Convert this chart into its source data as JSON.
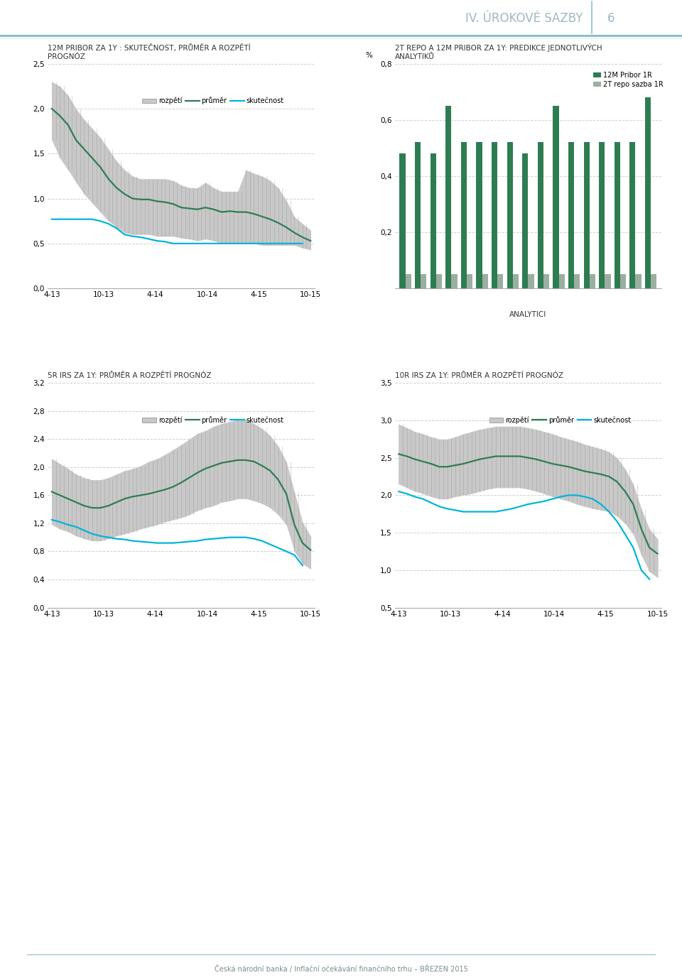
{
  "page_title": "IV. ÚROKOVÉ SAZBY",
  "page_number": "6",
  "footer": "Česká národní banka / Inflační očekávání finančního trhu – BŘEZEN 2015",
  "chart1_title": "12M PRIBOR ZA 1Y : SKUTEČNOST, PRŮMĚR A ROZPĚTÍ\nPROGNÓZ",
  "chart1_ylim": [
    0.0,
    2.5
  ],
  "chart1_yticks": [
    0.0,
    0.5,
    1.0,
    1.5,
    2.0,
    2.5
  ],
  "chart1_ytick_labels": [
    "0,0",
    "0,5",
    "1,0",
    "1,5",
    "2,0",
    "2,5"
  ],
  "chart1_xtick_labels": [
    "4-13",
    "10-13",
    "4-14",
    "10-14",
    "4-15",
    "10-15"
  ],
  "chart1_legend": [
    "rozpětí",
    "průměr",
    "skutečnost"
  ],
  "chart2_title": "2T REPO A 12M PRIBOR ZA 1Y: PREDIKCE JEDNOTLIVÝCH\nANALYTIKŮ",
  "chart2_ylabel": "%",
  "chart2_ylim": [
    0.0,
    0.8
  ],
  "chart2_yticks": [
    0.0,
    0.2,
    0.4,
    0.6,
    0.8
  ],
  "chart2_ytick_labels": [
    "",
    "0,2",
    "0,4",
    "0,6",
    "0,8"
  ],
  "chart2_xlabel": "ANALYTICI",
  "chart2_legend": [
    "12M Pribor 1R",
    "2T repo sazba 1R"
  ],
  "chart2_bar_color1": "#2e7d52",
  "chart2_bar_color2": "#9aafa0",
  "chart3_title": "5R IRS ZA 1Y: PRŮMĚR A ROZPĚTÍ PROGNÓZ",
  "chart3_ylim": [
    0.0,
    3.2
  ],
  "chart3_yticks": [
    0.0,
    0.4,
    0.8,
    1.2,
    1.6,
    2.0,
    2.4,
    2.8,
    3.2
  ],
  "chart3_ytick_labels": [
    "0,0",
    "0,4",
    "0,8",
    "1,2",
    "1,6",
    "2,0",
    "2,4",
    "2,8",
    "3,2"
  ],
  "chart3_xtick_labels": [
    "4-13",
    "10-13",
    "4-14",
    "10-14",
    "4-15",
    "10-15"
  ],
  "chart3_legend": [
    "rozpětí",
    "průměr",
    "skutečnost"
  ],
  "chart4_title": "10R IRS ZA 1Y: PRŮMĚR A ROZPĚTÍ PROGNÓZ",
  "chart4_ylim": [
    0.5,
    3.5
  ],
  "chart4_yticks": [
    0.5,
    1.0,
    1.5,
    2.0,
    2.5,
    3.0,
    3.5
  ],
  "chart4_ytick_labels": [
    "0,5",
    "1,0",
    "1,5",
    "2,0",
    "2,5",
    "3,0",
    "3,5"
  ],
  "chart4_xtick_labels": [
    "4-13",
    "10-13",
    "4-14",
    "10-14",
    "4-15",
    "10-15"
  ],
  "chart4_legend": [
    "rozpětí",
    "průměr",
    "skutečnost"
  ],
  "color_band": "#c8c8c8",
  "color_mean": "#2e7d52",
  "color_actual": "#00b5d8",
  "header_line_color1": "#8bbfcc",
  "header_line_color2": "#5a9aaf",
  "header_title_color": "#9fb8c0",
  "header_number_color": "#9fb8c0",
  "footer_color": "#7a8a90",
  "grid_color": "#d0d0d0",
  "grid_linestyle": "--",
  "pribor1r_mean": [
    2.0,
    1.92,
    1.82,
    1.65,
    1.55,
    1.45,
    1.35,
    1.22,
    1.12,
    1.05,
    1.0,
    0.99,
    0.99,
    0.97,
    0.96,
    0.94,
    0.9,
    0.89,
    0.88,
    0.9,
    0.88,
    0.85,
    0.86,
    0.85,
    0.85,
    0.83,
    0.8,
    0.77,
    0.73,
    0.68,
    0.62,
    0.57,
    0.53
  ],
  "pribor1r_upper": [
    2.3,
    2.25,
    2.15,
    2.0,
    1.88,
    1.78,
    1.68,
    1.55,
    1.42,
    1.32,
    1.25,
    1.22,
    1.22,
    1.22,
    1.22,
    1.2,
    1.15,
    1.12,
    1.12,
    1.18,
    1.12,
    1.08,
    1.08,
    1.08,
    1.32,
    1.28,
    1.25,
    1.2,
    1.12,
    0.98,
    0.8,
    0.72,
    0.65
  ],
  "pribor1r_lower": [
    1.65,
    1.45,
    1.32,
    1.18,
    1.05,
    0.95,
    0.85,
    0.75,
    0.68,
    0.62,
    0.6,
    0.6,
    0.6,
    0.58,
    0.58,
    0.58,
    0.56,
    0.55,
    0.53,
    0.55,
    0.53,
    0.5,
    0.5,
    0.5,
    0.5,
    0.5,
    0.48,
    0.48,
    0.48,
    0.48,
    0.48,
    0.45,
    0.43
  ],
  "pribor1r_actual": [
    0.77,
    0.77,
    0.77,
    0.77,
    0.77,
    0.77,
    0.75,
    0.72,
    0.67,
    0.6,
    0.58,
    0.57,
    0.55,
    0.53,
    0.52,
    0.5,
    0.5,
    0.5,
    0.5,
    0.5,
    0.5,
    0.5,
    0.5,
    0.5,
    0.5,
    0.5,
    0.5,
    0.5,
    0.5,
    0.5,
    0.5,
    0.5,
    null
  ],
  "pribor1r_bars_12m": [
    0.48,
    0.52,
    0.48,
    0.65,
    0.52,
    0.52,
    0.52,
    0.52,
    0.48,
    0.52,
    0.65,
    0.52,
    0.52,
    0.52,
    0.52,
    0.52,
    0.68
  ],
  "pribor1r_bars_2t": [
    0.05,
    0.05,
    0.05,
    0.05,
    0.05,
    0.05,
    0.05,
    0.05,
    0.05,
    0.05,
    0.05,
    0.05,
    0.05,
    0.05,
    0.05,
    0.05,
    0.05
  ],
  "irs5r_mean": [
    1.65,
    1.6,
    1.55,
    1.5,
    1.45,
    1.42,
    1.42,
    1.45,
    1.5,
    1.55,
    1.58,
    1.6,
    1.62,
    1.65,
    1.68,
    1.72,
    1.78,
    1.85,
    1.92,
    1.98,
    2.02,
    2.06,
    2.08,
    2.1,
    2.1,
    2.08,
    2.02,
    1.95,
    1.82,
    1.62,
    1.18,
    0.92,
    0.82
  ],
  "irs5r_upper": [
    2.12,
    2.05,
    1.98,
    1.9,
    1.85,
    1.82,
    1.82,
    1.85,
    1.9,
    1.95,
    1.98,
    2.02,
    2.08,
    2.12,
    2.18,
    2.25,
    2.32,
    2.4,
    2.48,
    2.52,
    2.58,
    2.62,
    2.65,
    2.68,
    2.68,
    2.62,
    2.55,
    2.45,
    2.3,
    2.08,
    1.65,
    1.22,
    1.02
  ],
  "irs5r_lower": [
    1.18,
    1.12,
    1.08,
    1.02,
    0.98,
    0.95,
    0.95,
    0.98,
    1.02,
    1.05,
    1.08,
    1.12,
    1.15,
    1.18,
    1.22,
    1.25,
    1.28,
    1.32,
    1.38,
    1.42,
    1.45,
    1.5,
    1.52,
    1.55,
    1.55,
    1.52,
    1.48,
    1.42,
    1.32,
    1.18,
    0.8,
    0.62,
    0.55
  ],
  "irs5r_actual": [
    1.25,
    1.22,
    1.18,
    1.15,
    1.1,
    1.05,
    1.02,
    1.0,
    0.98,
    0.97,
    0.95,
    0.94,
    0.93,
    0.92,
    0.92,
    0.92,
    0.93,
    0.94,
    0.95,
    0.97,
    0.98,
    0.99,
    1.0,
    1.0,
    1.0,
    0.98,
    0.95,
    0.9,
    0.85,
    0.8,
    0.75,
    0.6,
    null
  ],
  "irs10r_mean": [
    2.55,
    2.52,
    2.48,
    2.45,
    2.42,
    2.38,
    2.38,
    2.4,
    2.42,
    2.45,
    2.48,
    2.5,
    2.52,
    2.52,
    2.52,
    2.52,
    2.5,
    2.48,
    2.45,
    2.42,
    2.4,
    2.38,
    2.35,
    2.32,
    2.3,
    2.28,
    2.25,
    2.18,
    2.05,
    1.88,
    1.55,
    1.3,
    1.22
  ],
  "irs10r_upper": [
    2.95,
    2.9,
    2.85,
    2.82,
    2.78,
    2.75,
    2.75,
    2.78,
    2.82,
    2.85,
    2.88,
    2.9,
    2.92,
    2.92,
    2.92,
    2.92,
    2.9,
    2.88,
    2.85,
    2.82,
    2.78,
    2.75,
    2.72,
    2.68,
    2.65,
    2.62,
    2.58,
    2.5,
    2.35,
    2.15,
    1.82,
    1.55,
    1.42
  ],
  "irs10r_lower": [
    2.15,
    2.1,
    2.05,
    2.02,
    1.98,
    1.95,
    1.95,
    1.98,
    2.0,
    2.02,
    2.05,
    2.08,
    2.1,
    2.1,
    2.1,
    2.1,
    2.08,
    2.05,
    2.02,
    1.98,
    1.95,
    1.92,
    1.88,
    1.85,
    1.82,
    1.8,
    1.78,
    1.72,
    1.62,
    1.48,
    1.2,
    0.98,
    0.9
  ],
  "irs10r_actual": [
    2.05,
    2.02,
    1.98,
    1.95,
    1.9,
    1.85,
    1.82,
    1.8,
    1.78,
    1.78,
    1.78,
    1.78,
    1.78,
    1.8,
    1.82,
    1.85,
    1.88,
    1.9,
    1.92,
    1.95,
    1.98,
    2.0,
    2.0,
    1.98,
    1.95,
    1.88,
    1.78,
    1.65,
    1.48,
    1.3,
    1.0,
    0.88,
    null
  ]
}
